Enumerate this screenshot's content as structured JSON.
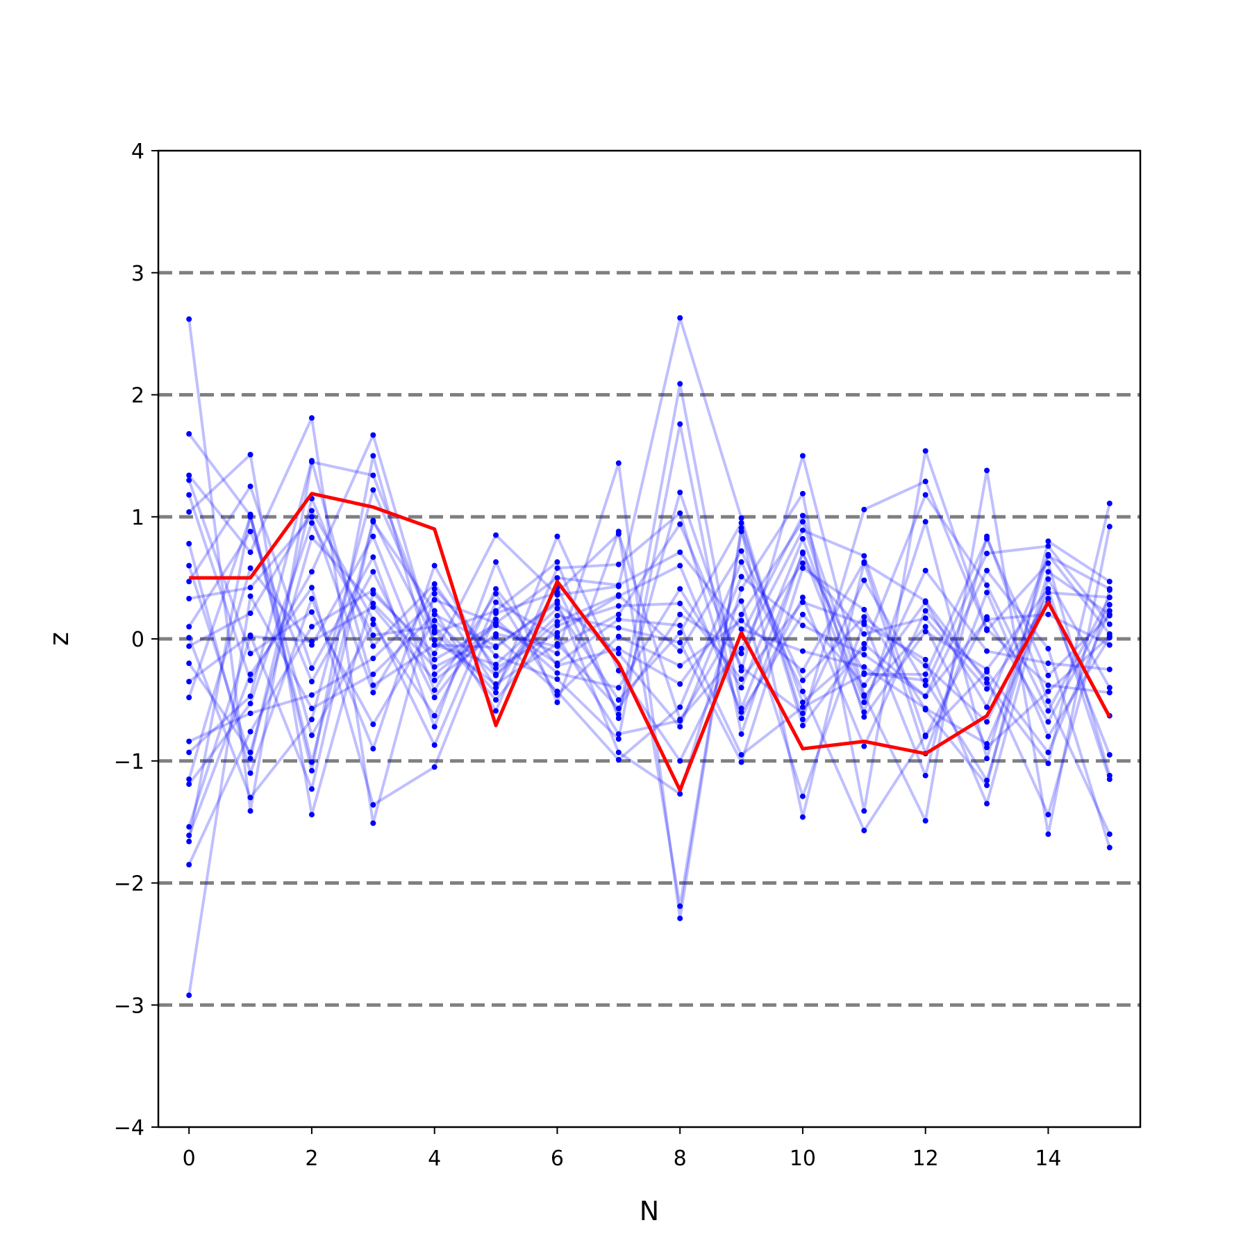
{
  "chart_data": {
    "type": "line",
    "title": "",
    "xlabel": "N",
    "ylabel": "z",
    "xlim": [
      -0.5,
      15.5
    ],
    "ylim": [
      -4,
      4
    ],
    "xticks": [
      0,
      2,
      4,
      6,
      8,
      10,
      12,
      14
    ],
    "yticks": [
      -4,
      -3,
      -2,
      -1,
      0,
      1,
      2,
      3,
      4
    ],
    "xtick_labels": [
      "0",
      "2",
      "4",
      "6",
      "8",
      "10",
      "12",
      "14"
    ],
    "ytick_labels": [
      "−4",
      "−3",
      "−2",
      "−1",
      "0",
      "1",
      "2",
      "3",
      "4"
    ],
    "reference_lines": [
      -3,
      -2,
      -1,
      0,
      1,
      2,
      3
    ],
    "reference_line_color": "#808080",
    "sample_color": "#0000ff",
    "mean_color": "#ff0000",
    "grid": false,
    "legend": "none",
    "x": [
      0,
      1,
      2,
      3,
      4,
      5,
      6,
      7,
      8,
      9,
      10,
      11,
      12,
      13,
      14,
      15
    ],
    "mean_series": [
      0.5,
      0.5,
      1.19,
      1.08,
      0.9,
      -0.71,
      0.47,
      -0.2,
      -1.24,
      0.05,
      -0.9,
      -0.84,
      -0.94,
      -0.63,
      0.3,
      -0.64
    ],
    "samples": [
      [
        2.62,
        -1.41,
        1.45,
        1.34,
        0.05,
        0.23,
        0.63,
        -0.65,
        2.09,
        -0.57,
        0.7,
        -0.28,
        -0.34,
        -1.16,
        0.55,
        0.2
      ],
      [
        1.68,
        1.01,
        -1.08,
        1.5,
        -0.29,
        0.11,
        -0.12,
        1.44,
        -2.29,
        0.91,
        -1.46,
        0.62,
        0.31,
        -0.36,
        -1.02,
        1.11
      ],
      [
        1.34,
        0.71,
        1.81,
        -1.51,
        0.37,
        -0.4,
        0.42,
        -0.62,
        1.2,
        -0.26,
        1.5,
        -0.46,
        -1.49,
        1.38,
        -1.6,
        0.92
      ],
      [
        1.18,
        -0.34,
        0.55,
        1.67,
        -0.05,
        -0.07,
        0.31,
        -0.93,
        -1.27,
        0.41,
        1.19,
        -1.41,
        1.54,
        0.08,
        -0.38,
        -0.44
      ],
      [
        1.04,
        1.51,
        -1.44,
        0.37,
        -0.12,
        0.85,
        0.36,
        0.43,
        2.63,
        0.99,
        -0.66,
        1.06,
        1.29,
        0.07,
        0.62,
        -1.12
      ],
      [
        0.78,
        -1.1,
        0.33,
        -0.9,
        0.6,
        -0.29,
        0.19,
        0.09,
        -0.03,
        -1.01,
        0.58,
        0.24,
        -0.58,
        -1.2,
        0.8,
        0.47
      ],
      [
        0.47,
        1.25,
        -0.24,
        0.67,
        -0.72,
        0.63,
        -0.52,
        0.88,
        -2.19,
        0.88,
        -0.52,
        -0.08,
        1.18,
        0.44,
        -0.59,
        0.34
      ],
      [
        0.33,
        0.42,
        1.0,
        -0.44,
        0.41,
        -0.14,
        -0.33,
        -0.82,
        1.76,
        -0.78,
        0.71,
        -0.6,
        0.96,
        -0.98,
        0.69,
        0.04
      ],
      [
        0.01,
        -1.3,
        -0.66,
        1.22,
        0.07,
        -0.5,
        0.11,
        0.27,
        0.29,
        -0.33,
        0.3,
        0.12,
        -0.17,
        -1.35,
        0.49,
        -0.4
      ],
      [
        -0.06,
        0.21,
        1.05,
        0.16,
        -0.87,
        0.3,
        0.02,
        -0.78,
        -0.67,
        0.2,
        0.96,
        -0.64,
        0.06,
        -0.25,
        0.41,
        -1.15
      ],
      [
        -0.2,
        -0.93,
        0.83,
        0.29,
        -0.23,
        0.02,
        -0.43,
        -0.99,
        -0.56,
        0.63,
        -0.43,
        -1.57,
        -0.79,
        -0.27,
        -0.93,
        0.23
      ],
      [
        -0.35,
        0.03,
        -1.23,
        0.96,
        0.23,
        -0.59,
        0.58,
        0.61,
        1.03,
        -0.65,
        0.34,
        -0.88,
        0.23,
        -0.33,
        -1.44,
        0.4
      ],
      [
        -0.48,
        1.0,
        -0.79,
        0.12,
        -0.63,
        0.41,
        -0.22,
        -0.08,
        -0.37,
        0.31,
        -1.29,
        0.14,
        -1.12,
        0.84,
        -0.51,
        -1.6
      ],
      [
        -0.84,
        -0.61,
        -0.46,
        -0.16,
        0.32,
        0.13,
        0.5,
        0.44,
        0.71,
        0.08,
        -0.1,
        -0.23,
        -0.57,
        -0.86,
        0.33,
        -0.95
      ],
      [
        -0.93,
        -0.47,
        1.46,
        -0.38,
        -0.05,
        -0.21,
        0.25,
        -0.5,
        0.05,
        0.95,
        -0.71,
        -0.04,
        -0.47,
        0.56,
        -0.08,
        -1.71
      ],
      [
        -1.19,
        -0.53,
        0.95,
        0.03,
        0.1,
        -0.44,
        0.84,
        -0.26,
        -1.0,
        0.03,
        1.01,
        -0.47,
        0.1,
        -0.89,
        -0.43,
        0.02
      ],
      [
        -1.54,
        0.02,
        -0.02,
        0.26,
        -0.34,
        0.04,
        -0.06,
        0.2,
        0.94,
        -0.23,
        -0.61,
        0.48,
        -0.38,
        0.7,
        0.76,
        0.12
      ],
      [
        -1.61,
        -0.29,
        0.42,
        -1.36,
        -1.05,
        0.21,
        0.38,
        0.86,
        -0.66,
        -0.08,
        0.89,
        0.68,
        -0.8,
        0.18,
        -0.68,
        0.28
      ],
      [
        -1.66,
        1.02,
        -1.01,
        0.97,
        -0.01,
        -0.37,
        -0.04,
        -0.57,
        0.2,
        -0.12,
        0.62,
        0.04,
        0.17,
        -0.41,
        0.3,
        -0.63
      ],
      [
        -1.85,
        -0.76,
        0.1,
        0.4,
        -0.17,
        0.12,
        -0.2,
        0.16,
        0.11,
        -0.95,
        -0.56,
        -0.29,
        -0.29,
        0.82,
        -0.3,
        0.19
      ],
      [
        -2.92,
        0.35,
        -0.57,
        -0.29,
        0.2,
        -0.06,
        0.29,
        -0.12,
        -0.72,
        0.51,
        0.11,
        -0.13,
        -0.47,
        0.16,
        0.2,
        -0.05
      ],
      [
        0.6,
        -0.98,
        1.15,
        -0.06,
        0.45,
        -0.24,
        0.05,
        0.35,
        0.6,
        -0.6,
        0.2,
        -0.38,
        0.3,
        -0.56,
        0.68,
        0.41
      ],
      [
        -1.15,
        0.58,
        -0.05,
        0.84,
        -0.42,
        0.37,
        -0.46,
        0.02,
        -0.22,
        0.15,
        -0.26,
        0.63,
        -0.94,
        0.38,
        -0.8,
        0.01
      ],
      [
        1.3,
        -0.12,
        0.22,
        -0.7,
        0.15,
        -0.3,
        0.14,
        0.36,
        -0.1,
        0.72,
        -0.34,
        0.18,
        -0.22,
        -0.68,
        0.38,
        0.34
      ],
      [
        0.1,
        0.88,
        -0.35,
        0.55,
        -0.48,
        0.16,
        -0.28,
        -0.4,
        0.41,
        -0.4,
        0.82,
        -0.52,
        0.56,
        -0.1,
        -0.2,
        -0.25
      ]
    ]
  }
}
